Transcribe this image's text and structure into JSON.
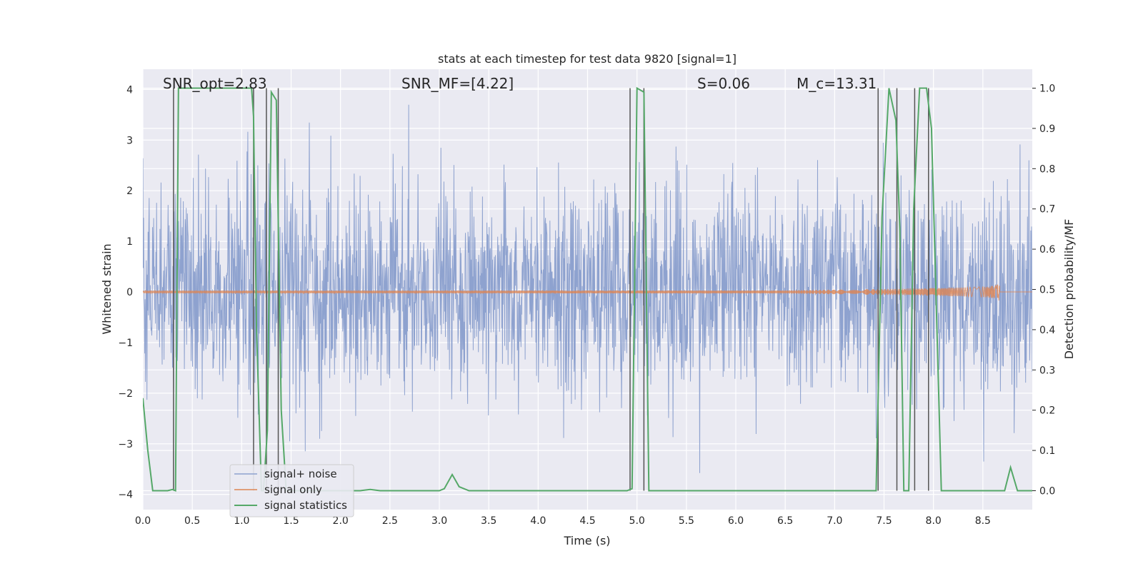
{
  "chart_data": {
    "type": "line",
    "title": "stats at each timestep for test data 9820 [signal=1]",
    "xlabel": "Time (s)",
    "ylabel_left": "Whitened strain",
    "ylabel_right": "Detection probability/MF",
    "xlim": [
      0,
      9
    ],
    "ylim_left": [
      -4.3,
      4.4
    ],
    "ylim_right": [
      -0.047,
      1.047
    ],
    "x_ticks": [
      "0.0",
      "0.5",
      "1.0",
      "1.5",
      "2.0",
      "2.5",
      "3.0",
      "3.5",
      "4.0",
      "4.5",
      "5.0",
      "5.5",
      "6.0",
      "6.5",
      "7.0",
      "7.5",
      "8.0",
      "8.5"
    ],
    "y_left_ticks": [
      "−4",
      "−3",
      "−2",
      "−1",
      "0",
      "1",
      "2",
      "3",
      "4"
    ],
    "y_right_ticks": [
      "0.0",
      "0.1",
      "0.2",
      "0.3",
      "0.4",
      "0.5",
      "0.6",
      "0.7",
      "0.8",
      "0.9",
      "1.0"
    ],
    "annotations": [
      {
        "text": "SNR_opt=2.83"
      },
      {
        "text": "SNR_MF=[4.22]"
      },
      {
        "text": "S=0.06"
      },
      {
        "text": "M_c=13.31"
      }
    ],
    "series": [
      {
        "name": "signal+ noise",
        "color": "#8ea2cf",
        "note": "whitened noise, amplitude approx. ±3.5"
      },
      {
        "name": "signal only",
        "color": "#dd8452",
        "note": "chirp growing to ~0.6 amplitude, merger near t=8.67 s"
      },
      {
        "name": "signal statistics",
        "color": "#55a868",
        "x": [
          0.0,
          0.05,
          0.1,
          0.15,
          0.2,
          0.25,
          0.3,
          0.33,
          0.36,
          0.4,
          0.5,
          0.6,
          0.7,
          0.8,
          0.9,
          1.0,
          1.1,
          1.12,
          1.15,
          1.2,
          1.22,
          1.26,
          1.3,
          1.35,
          1.4,
          1.45,
          1.5,
          2.2,
          2.3,
          2.4,
          2.5,
          3.0,
          3.05,
          3.13,
          3.2,
          3.3,
          3.5,
          4.9,
          4.95,
          5.0,
          5.07,
          5.12,
          5.2,
          7.35,
          7.42,
          7.48,
          7.55,
          7.62,
          7.66,
          7.7,
          7.75,
          7.8,
          7.86,
          7.93,
          7.98,
          8.08,
          8.15,
          8.72,
          8.78,
          8.85,
          9.0
        ],
        "y": [
          0.23,
          0.1,
          0.0,
          0.0,
          0.0,
          0.0,
          0.003,
          0.0,
          1.0,
          1.0,
          1.0,
          1.0,
          1.0,
          1.0,
          1.0,
          1.0,
          1.0,
          0.93,
          0.4,
          0.0,
          0.0,
          0.15,
          0.99,
          0.97,
          0.2,
          0.0,
          0.0,
          0.0,
          0.003,
          0.0,
          0.0,
          0.0,
          0.005,
          0.04,
          0.01,
          0.0,
          0.0,
          0.0,
          0.005,
          1.0,
          0.99,
          0.0,
          0.0,
          0.0,
          0.0,
          0.68,
          1.0,
          0.92,
          0.65,
          0.0,
          0.0,
          0.7,
          1.0,
          1.0,
          0.9,
          0.0,
          0.0,
          0.0,
          0.058,
          0.0,
          0.0
        ]
      }
    ],
    "vertical_markers_s": [
      0.31,
      1.12,
      1.25,
      1.37,
      4.93,
      5.07,
      7.44,
      7.63,
      7.81,
      7.95
    ],
    "legend_location": "lower-left"
  }
}
